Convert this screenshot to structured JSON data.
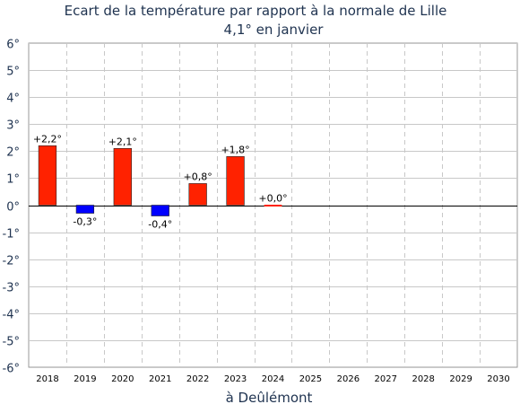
{
  "chart_data": {
    "type": "bar",
    "title": "Ecart de la température par rapport à la normale de Lille",
    "subtitle": "4,1° en janvier",
    "xlabel": "à Deûlémont",
    "ylabel": "",
    "categories": [
      "2018",
      "2019",
      "2020",
      "2021",
      "2022",
      "2023",
      "2024",
      "2025",
      "2026",
      "2027",
      "2028",
      "2029",
      "2030"
    ],
    "values": [
      2.2,
      -0.3,
      2.1,
      -0.4,
      0.8,
      1.8,
      0.0,
      null,
      null,
      null,
      null,
      null,
      null
    ],
    "data_labels": [
      "+2,2°",
      "-0,3°",
      "+2,1°",
      "-0,4°",
      "+0,8°",
      "+1,8°",
      "+0,0°",
      "",
      "",
      "",
      "",
      "",
      ""
    ],
    "ylim": [
      -6,
      6
    ],
    "yticks": [
      6,
      5,
      4,
      3,
      2,
      1,
      0,
      -1,
      -2,
      -3,
      -4,
      -5,
      -6
    ],
    "ytick_labels": [
      "6°",
      "5°",
      "4°",
      "3°",
      "2°",
      "1°",
      "0°",
      "-1°",
      "-2°",
      "-3°",
      "-4°",
      "-5°",
      "-6°"
    ],
    "grid": true,
    "colors": {
      "positive": "#ff2200",
      "negative": "#0000ff",
      "grid": "#c8c8c8",
      "text": "#1f3350"
    }
  }
}
